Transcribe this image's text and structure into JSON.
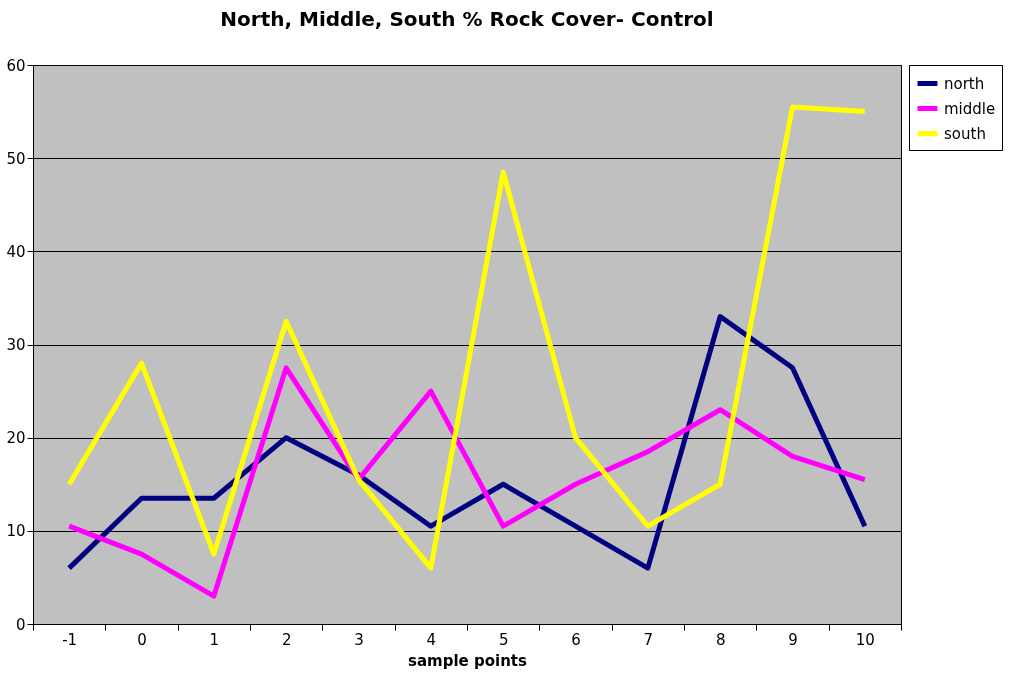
{
  "chart_data": {
    "type": "line",
    "title": "North, Middle, South % Rock Cover- Control",
    "xlabel": "sample points",
    "categories": [
      "-1",
      "0",
      "1",
      "2",
      "3",
      "4",
      "5",
      "6",
      "7",
      "8",
      "9",
      "10"
    ],
    "series": [
      {
        "name": "north",
        "color": "#000080",
        "values": [
          6,
          13.5,
          13.5,
          20,
          16,
          10.5,
          15,
          10.5,
          6,
          33,
          27.5,
          10.5
        ]
      },
      {
        "name": "middle",
        "color": "#ff00ff",
        "values": [
          10.5,
          7.5,
          3,
          27.5,
          15.5,
          25,
          10.5,
          15,
          18.5,
          23,
          18,
          15.5
        ]
      },
      {
        "name": "south",
        "color": "#ffff00",
        "values": [
          15,
          28,
          7.5,
          32.5,
          15.5,
          6,
          48.5,
          20,
          10.5,
          15,
          55.5,
          55
        ]
      }
    ],
    "ylim": [
      0,
      60
    ],
    "yticks": [
      0,
      10,
      20,
      30,
      40,
      50,
      60
    ],
    "grid": "y",
    "legend": "right",
    "line_style": "solid",
    "marker": "none"
  }
}
